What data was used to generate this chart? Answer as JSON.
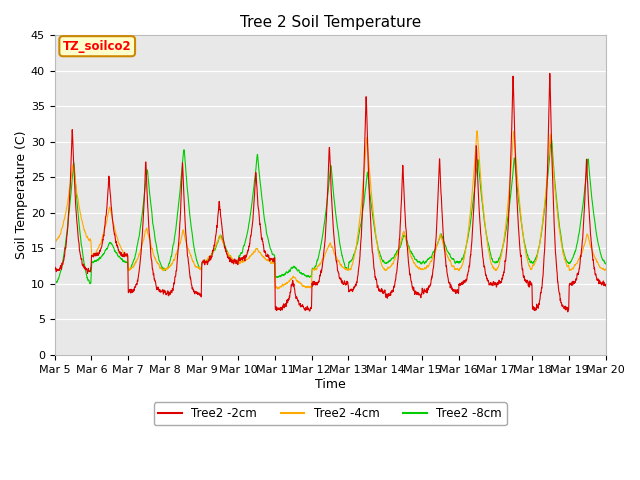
{
  "title": "Tree 2 Soil Temperature",
  "xlabel": "Time",
  "ylabel": "Soil Temperature (C)",
  "ylim": [
    0,
    45
  ],
  "xtick_labels": [
    "Mar 5",
    "Mar 6",
    "Mar 7",
    "Mar 8",
    "Mar 9",
    "Mar 10",
    "Mar 11",
    "Mar 12",
    "Mar 13",
    "Mar 14",
    "Mar 15",
    "Mar 16",
    "Mar 17",
    "Mar 18",
    "Mar 19",
    "Mar 20"
  ],
  "annotation_text": "TZ_soilco2",
  "annotation_bg": "#ffffcc",
  "annotation_border": "#cc8800",
  "color_2cm": "#dd0000",
  "color_4cm": "#ffaa00",
  "color_8cm": "#00cc00",
  "legend_labels": [
    "Tree2 -2cm",
    "Tree2 -4cm",
    "Tree2 -8cm"
  ],
  "bg_color": "#e8e8e8",
  "title_fontsize": 11,
  "label_fontsize": 9,
  "tick_fontsize": 8
}
